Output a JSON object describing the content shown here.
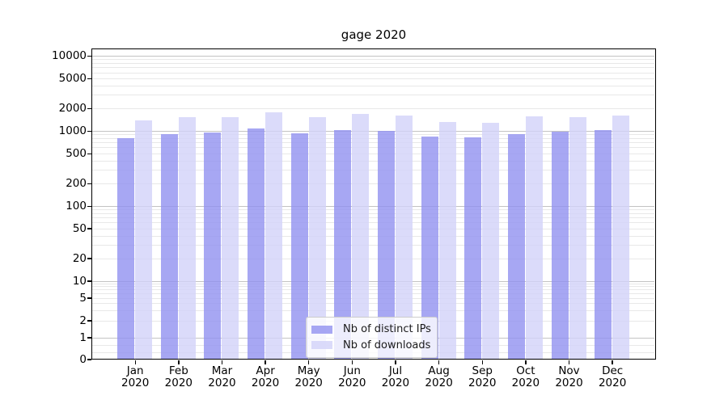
{
  "title": "gage 2020",
  "chart_data": {
    "type": "bar",
    "title": "gage 2020",
    "categories": [
      "Jan",
      "Feb",
      "Mar",
      "Apr",
      "May",
      "Jun",
      "Jul",
      "Aug",
      "Sep",
      "Oct",
      "Nov",
      "Dec"
    ],
    "year": "2020",
    "series": [
      {
        "name": "Nb of distinct IPs",
        "color": "#9191f0",
        "values": [
          780,
          885,
          930,
          1060,
          920,
          1010,
          990,
          830,
          800,
          880,
          960,
          1005
        ]
      },
      {
        "name": "Nb of downloads",
        "color": "#d2d2f9",
        "values": [
          1360,
          1500,
          1480,
          1740,
          1480,
          1670,
          1590,
          1290,
          1270,
          1550,
          1480,
          1565
        ]
      }
    ],
    "xlabel": "",
    "ylabel": "",
    "yscale": "symlog",
    "yticks": [
      0,
      1,
      2,
      5,
      10,
      20,
      50,
      100,
      200,
      500,
      1000,
      2000,
      5000,
      10000
    ],
    "ylim": [
      0,
      12800
    ],
    "grid": true,
    "legend_position": "lower center"
  }
}
